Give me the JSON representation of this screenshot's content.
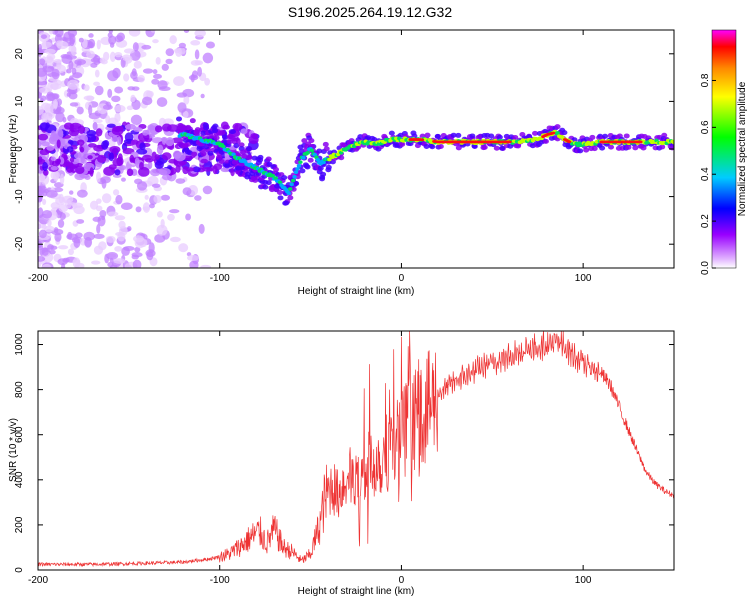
{
  "chart_data": [
    {
      "type": "heatmap",
      "title": "S196.2025.264.19.12.G32",
      "xlabel": "Height of straight line (km)",
      "ylabel": "Frequency (Hz)",
      "xlim": [
        -200,
        150
      ],
      "ylim": [
        -25,
        25
      ],
      "xticks": [
        -200,
        -100,
        0,
        100
      ],
      "yticks": [
        -20,
        -10,
        0,
        10,
        20
      ],
      "colorbar": {
        "label": "Normalized spectral amplitude",
        "range": [
          0,
          1
        ],
        "ticks": [
          "0.0",
          "0.2",
          "0.4",
          "0.6",
          "0.8"
        ],
        "colormap": [
          "#ffffff",
          "#cc00ff",
          "#0000ff",
          "#00ccff",
          "#00ff00",
          "#ffff00",
          "#ff8800",
          "#ff0000",
          "#ff00ff"
        ]
      },
      "ridge": {
        "name": "dominant frequency",
        "x": [
          -120,
          -100,
          -90,
          -80,
          -70,
          -62,
          -55,
          -50,
          -45,
          -40,
          -35,
          -30,
          -25,
          -20,
          -15,
          -10,
          -5,
          0,
          10,
          20,
          40,
          60,
          75,
          80,
          85,
          90,
          95,
          100,
          110,
          130,
          150
        ],
        "y": [
          3,
          1,
          -2,
          -4,
          -6,
          -9,
          -2,
          0,
          -3,
          -2,
          -1,
          0,
          1,
          1.5,
          1,
          1.5,
          2,
          2,
          2,
          1.5,
          1.5,
          1.5,
          2,
          3,
          3.5,
          2,
          1,
          1,
          1.5,
          1.5,
          1.5
        ]
      }
    },
    {
      "type": "line",
      "xlabel": "Height of straight line (km)",
      "ylabel": "SNR (10 * v/v)",
      "xlim": [
        -200,
        150
      ],
      "ylim": [
        0,
        1060
      ],
      "xticks": [
        -200,
        -100,
        0,
        100
      ],
      "yticks": [
        0,
        200,
        400,
        600,
        800,
        1000
      ],
      "series": [
        {
          "name": "SNR",
          "color": "#ee3333",
          "x": [
            -200,
            -170,
            -140,
            -120,
            -105,
            -95,
            -88,
            -82,
            -78,
            -74,
            -70,
            -65,
            -60,
            -55,
            -50,
            -45,
            -42,
            -38,
            -35,
            -30,
            -25,
            -20,
            -15,
            -10,
            -5,
            0,
            5,
            10,
            15,
            20,
            30,
            40,
            50,
            60,
            70,
            80,
            85,
            90,
            95,
            100,
            110,
            115,
            120,
            125,
            130,
            135,
            140,
            145,
            150
          ],
          "y": [
            25,
            25,
            30,
            35,
            50,
            70,
            110,
            150,
            170,
            120,
            180,
            100,
            80,
            40,
            70,
            200,
            320,
            380,
            330,
            420,
            380,
            440,
            480,
            500,
            560,
            600,
            650,
            700,
            720,
            780,
            840,
            880,
            920,
            950,
            980,
            1000,
            1010,
            990,
            950,
            920,
            870,
            820,
            720,
            620,
            520,
            430,
            380,
            350,
            330
          ]
        }
      ]
    }
  ]
}
